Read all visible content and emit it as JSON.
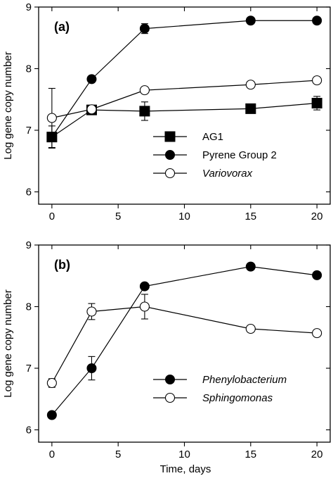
{
  "figure": {
    "xlabel": "Time, days"
  },
  "chart_data": [
    {
      "type": "line",
      "panel_label": "(a)",
      "ylabel": "Log gene copy number",
      "xlim": [
        -1,
        21
      ],
      "ylim": [
        5.8,
        9
      ],
      "xticks": [
        0,
        5,
        10,
        15,
        20
      ],
      "yticks": [
        6,
        7,
        8,
        9
      ],
      "legend_position": "lower-right",
      "grid": false,
      "series": [
        {
          "name": "AG1",
          "marker": "square-filled",
          "x": [
            0,
            3,
            7,
            15,
            20
          ],
          "y": [
            6.89,
            7.33,
            7.31,
            7.35,
            7.44
          ],
          "err": [
            0.18,
            0.04,
            0.15,
            0.07,
            0.11
          ]
        },
        {
          "name": "Pyrene Group 2",
          "marker": "circle-filled",
          "x": [
            0,
            3,
            7,
            15,
            20
          ],
          "y": [
            6.89,
            7.83,
            8.65,
            8.78,
            8.78
          ],
          "err": [
            0.0,
            0.0,
            0.08,
            0.0,
            0.0
          ]
        },
        {
          "name": "Variovorax",
          "marker": "circle-open",
          "italic": true,
          "x": [
            0,
            3,
            7,
            15,
            20
          ],
          "y": [
            7.2,
            7.34,
            7.65,
            7.74,
            7.81
          ],
          "err": [
            0.48,
            0.0,
            0.0,
            0.05,
            0.04
          ]
        }
      ]
    },
    {
      "type": "line",
      "panel_label": "(b)",
      "ylabel": "Log gene copy number",
      "xlabel": "Time, days",
      "xlim": [
        -1,
        21
      ],
      "ylim": [
        5.8,
        9
      ],
      "xticks": [
        0,
        5,
        10,
        15,
        20
      ],
      "yticks": [
        6,
        7,
        8,
        9
      ],
      "legend_position": "lower-right",
      "grid": false,
      "series": [
        {
          "name": "Phenylobacterium",
          "marker": "circle-filled",
          "italic": true,
          "x": [
            0,
            3,
            7,
            15,
            20
          ],
          "y": [
            6.24,
            7.0,
            8.33,
            8.65,
            8.51
          ],
          "err": [
            0.0,
            0.19,
            0.04,
            0.05,
            0.05
          ]
        },
        {
          "name": "Sphingomonas",
          "marker": "circle-open",
          "italic": true,
          "x": [
            0,
            3,
            7,
            15,
            20
          ],
          "y": [
            6.76,
            7.92,
            8.0,
            7.64,
            7.57
          ],
          "err": [
            0.07,
            0.13,
            0.2,
            0.0,
            0.0
          ]
        }
      ]
    }
  ]
}
